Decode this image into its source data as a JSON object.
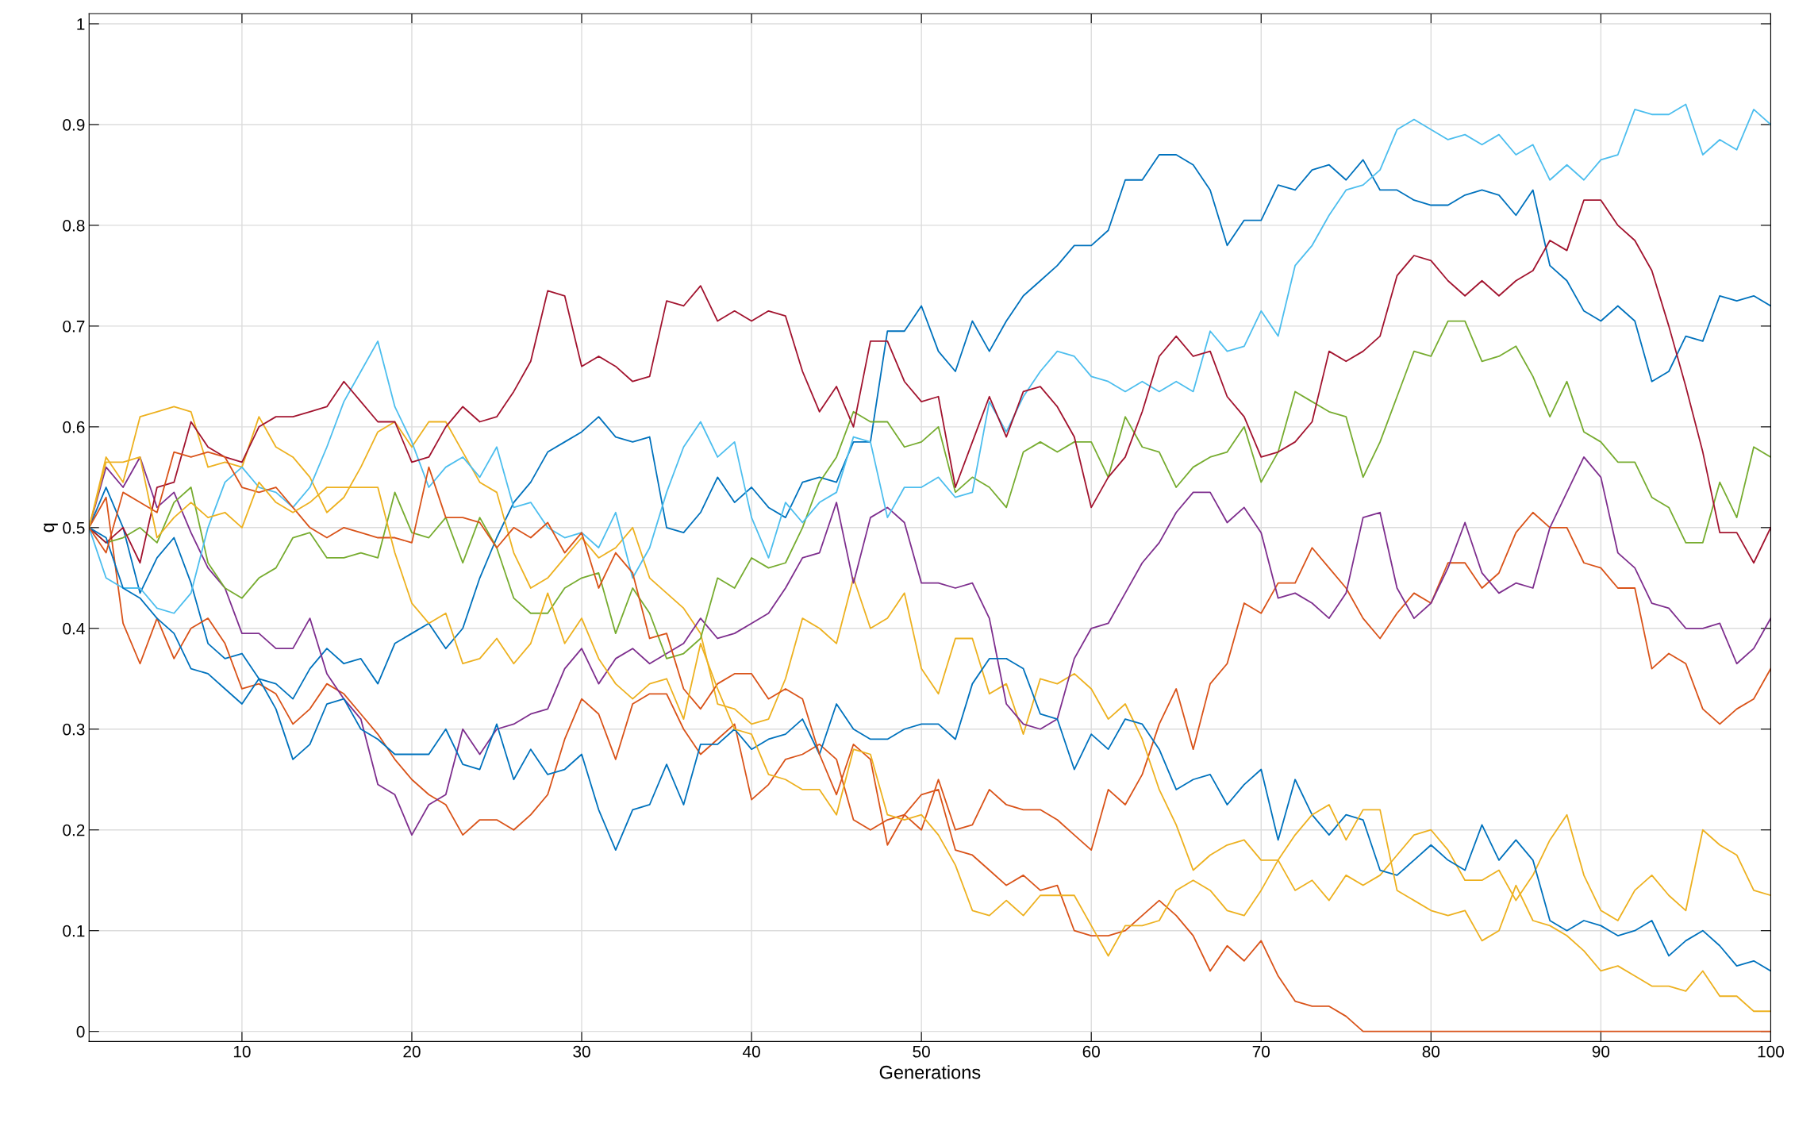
{
  "chart_data": {
    "type": "line",
    "xlabel": "Generations",
    "ylabel": "q",
    "x": [
      1,
      2,
      3,
      4,
      5,
      6,
      7,
      8,
      9,
      10,
      11,
      12,
      13,
      14,
      15,
      16,
      17,
      18,
      19,
      20,
      21,
      22,
      23,
      24,
      25,
      26,
      27,
      28,
      29,
      30,
      31,
      32,
      33,
      34,
      35,
      36,
      37,
      38,
      39,
      40,
      41,
      42,
      43,
      44,
      45,
      46,
      47,
      48,
      49,
      50,
      51,
      52,
      53,
      54,
      55,
      56,
      57,
      58,
      59,
      60,
      61,
      62,
      63,
      64,
      65,
      66,
      67,
      68,
      69,
      70,
      71,
      72,
      73,
      74,
      75,
      76,
      77,
      78,
      79,
      80,
      81,
      82,
      83,
      84,
      85,
      86,
      87,
      88,
      89,
      90,
      91,
      92,
      93,
      94,
      95,
      96,
      97,
      98,
      99,
      100
    ],
    "xlim": [
      1,
      100
    ],
    "xticks": [
      10,
      20,
      30,
      40,
      50,
      60,
      70,
      80,
      90,
      100
    ],
    "ylim": [
      -0.01,
      1.01
    ],
    "yticks": [
      0,
      0.1,
      0.2,
      0.3,
      0.4,
      0.5,
      0.6,
      0.7,
      0.8,
      0.9,
      1
    ],
    "grid": true,
    "marker": "none",
    "line_style": "solid",
    "series": [
      {
        "color": "#0072bd",
        "values": [
          0.5,
          0.54,
          0.5,
          0.435,
          0.47,
          0.49,
          0.445,
          0.385,
          0.37,
          0.375,
          0.35,
          0.345,
          0.33,
          0.36,
          0.38,
          0.365,
          0.37,
          0.345,
          0.385,
          0.395,
          0.405,
          0.38,
          0.4,
          0.45,
          0.49,
          0.525,
          0.545,
          0.575,
          0.585,
          0.595,
          0.61,
          0.59,
          0.585,
          0.59,
          0.5,
          0.495,
          0.515,
          0.55,
          0.525,
          0.54,
          0.52,
          0.51,
          0.545,
          0.55,
          0.545,
          0.585,
          0.585,
          0.695,
          0.695,
          0.72,
          0.675,
          0.655,
          0.705,
          0.675,
          0.705,
          0.73,
          0.745,
          0.76,
          0.78,
          0.78,
          0.795,
          0.845,
          0.845,
          0.87,
          0.87,
          0.86,
          0.835,
          0.78,
          0.805,
          0.805,
          0.84,
          0.835,
          0.855,
          0.86,
          0.845,
          0.865,
          0.835,
          0.835,
          0.825,
          0.82,
          0.82,
          0.83,
          0.835,
          0.83,
          0.81,
          0.835,
          0.76,
          0.745,
          0.715,
          0.705,
          0.72,
          0.705,
          0.645,
          0.655,
          0.69,
          0.685,
          0.73,
          0.725,
          0.73,
          0.72
        ]
      },
      {
        "color": "#d95319",
        "values": [
          0.5,
          0.53,
          0.405,
          0.365,
          0.41,
          0.37,
          0.4,
          0.41,
          0.385,
          0.34,
          0.345,
          0.335,
          0.305,
          0.32,
          0.345,
          0.335,
          0.315,
          0.295,
          0.27,
          0.25,
          0.235,
          0.225,
          0.195,
          0.21,
          0.21,
          0.2,
          0.215,
          0.235,
          0.29,
          0.33,
          0.315,
          0.27,
          0.325,
          0.335,
          0.335,
          0.3,
          0.275,
          0.29,
          0.305,
          0.23,
          0.245,
          0.27,
          0.275,
          0.285,
          0.27,
          0.21,
          0.2,
          0.21,
          0.215,
          0.2,
          0.25,
          0.2,
          0.205,
          0.24,
          0.225,
          0.22,
          0.22,
          0.21,
          0.195,
          0.18,
          0.24,
          0.225,
          0.255,
          0.305,
          0.34,
          0.28,
          0.345,
          0.365,
          0.425,
          0.415,
          0.445,
          0.445,
          0.48,
          0.46,
          0.44,
          0.41,
          0.39,
          0.415,
          0.435,
          0.425,
          0.465,
          0.465,
          0.44,
          0.455,
          0.495,
          0.515,
          0.5,
          0.5,
          0.465,
          0.46,
          0.44,
          0.44,
          0.36,
          0.375,
          0.365,
          0.32,
          0.305,
          0.32,
          0.33,
          0.36
        ]
      },
      {
        "color": "#edb120",
        "values": [
          0.5,
          0.57,
          0.545,
          0.61,
          0.615,
          0.62,
          0.615,
          0.56,
          0.565,
          0.56,
          0.61,
          0.58,
          0.57,
          0.55,
          0.515,
          0.53,
          0.56,
          0.595,
          0.605,
          0.58,
          0.605,
          0.605,
          0.575,
          0.545,
          0.535,
          0.475,
          0.44,
          0.45,
          0.47,
          0.49,
          0.47,
          0.48,
          0.5,
          0.45,
          0.435,
          0.42,
          0.395,
          0.325,
          0.32,
          0.305,
          0.31,
          0.35,
          0.41,
          0.4,
          0.385,
          0.45,
          0.4,
          0.41,
          0.435,
          0.36,
          0.335,
          0.39,
          0.39,
          0.335,
          0.345,
          0.295,
          0.35,
          0.345,
          0.355,
          0.34,
          0.31,
          0.325,
          0.29,
          0.24,
          0.205,
          0.16,
          0.175,
          0.185,
          0.19,
          0.17,
          0.17,
          0.14,
          0.15,
          0.13,
          0.155,
          0.145,
          0.155,
          0.175,
          0.195,
          0.2,
          0.18,
          0.15,
          0.15,
          0.16,
          0.13,
          0.155,
          0.19,
          0.215,
          0.155,
          0.12,
          0.11,
          0.14,
          0.155,
          0.135,
          0.12,
          0.2,
          0.185,
          0.175,
          0.14,
          0.135
        ]
      },
      {
        "color": "#7e2f8e",
        "values": [
          0.5,
          0.56,
          0.54,
          0.57,
          0.52,
          0.535,
          0.495,
          0.46,
          0.44,
          0.395,
          0.395,
          0.38,
          0.38,
          0.41,
          0.355,
          0.33,
          0.31,
          0.245,
          0.235,
          0.195,
          0.225,
          0.235,
          0.3,
          0.275,
          0.3,
          0.305,
          0.315,
          0.32,
          0.36,
          0.38,
          0.345,
          0.37,
          0.38,
          0.365,
          0.375,
          0.385,
          0.41,
          0.39,
          0.395,
          0.405,
          0.415,
          0.44,
          0.47,
          0.475,
          0.525,
          0.445,
          0.51,
          0.52,
          0.505,
          0.445,
          0.445,
          0.44,
          0.445,
          0.41,
          0.325,
          0.305,
          0.3,
          0.31,
          0.37,
          0.4,
          0.405,
          0.435,
          0.465,
          0.485,
          0.515,
          0.535,
          0.535,
          0.505,
          0.52,
          0.495,
          0.43,
          0.435,
          0.425,
          0.41,
          0.435,
          0.51,
          0.515,
          0.44,
          0.41,
          0.425,
          0.46,
          0.505,
          0.455,
          0.435,
          0.445,
          0.44,
          0.5,
          0.535,
          0.57,
          0.55,
          0.475,
          0.46,
          0.425,
          0.42,
          0.4,
          0.4,
          0.405,
          0.365,
          0.38,
          0.41
        ]
      },
      {
        "color": "#77ac30",
        "values": [
          0.5,
          0.485,
          0.49,
          0.5,
          0.485,
          0.525,
          0.54,
          0.465,
          0.44,
          0.43,
          0.45,
          0.46,
          0.49,
          0.495,
          0.47,
          0.47,
          0.475,
          0.47,
          0.535,
          0.495,
          0.49,
          0.51,
          0.465,
          0.51,
          0.48,
          0.43,
          0.415,
          0.415,
          0.44,
          0.45,
          0.455,
          0.395,
          0.44,
          0.415,
          0.37,
          0.375,
          0.39,
          0.45,
          0.44,
          0.47,
          0.46,
          0.465,
          0.5,
          0.545,
          0.57,
          0.615,
          0.605,
          0.605,
          0.58,
          0.585,
          0.6,
          0.535,
          0.55,
          0.54,
          0.52,
          0.575,
          0.585,
          0.575,
          0.585,
          0.585,
          0.55,
          0.61,
          0.58,
          0.575,
          0.54,
          0.56,
          0.57,
          0.575,
          0.6,
          0.545,
          0.575,
          0.635,
          0.625,
          0.615,
          0.61,
          0.55,
          0.585,
          0.63,
          0.675,
          0.67,
          0.705,
          0.705,
          0.665,
          0.67,
          0.68,
          0.65,
          0.61,
          0.645,
          0.595,
          0.585,
          0.565,
          0.565,
          0.53,
          0.52,
          0.485,
          0.485,
          0.545,
          0.51,
          0.58,
          0.57
        ]
      },
      {
        "color": "#4dbeee",
        "values": [
          0.5,
          0.45,
          0.44,
          0.44,
          0.42,
          0.415,
          0.435,
          0.5,
          0.545,
          0.56,
          0.54,
          0.535,
          0.52,
          0.54,
          0.58,
          0.625,
          0.655,
          0.685,
          0.62,
          0.585,
          0.54,
          0.56,
          0.57,
          0.55,
          0.58,
          0.52,
          0.525,
          0.5,
          0.49,
          0.495,
          0.48,
          0.515,
          0.45,
          0.48,
          0.535,
          0.58,
          0.605,
          0.57,
          0.585,
          0.51,
          0.47,
          0.525,
          0.505,
          0.525,
          0.535,
          0.59,
          0.585,
          0.51,
          0.54,
          0.54,
          0.55,
          0.53,
          0.535,
          0.625,
          0.595,
          0.63,
          0.655,
          0.675,
          0.67,
          0.65,
          0.645,
          0.635,
          0.645,
          0.635,
          0.645,
          0.635,
          0.695,
          0.675,
          0.68,
          0.715,
          0.69,
          0.76,
          0.78,
          0.81,
          0.835,
          0.84,
          0.855,
          0.895,
          0.905,
          0.895,
          0.885,
          0.89,
          0.88,
          0.89,
          0.87,
          0.88,
          0.845,
          0.86,
          0.845,
          0.865,
          0.87,
          0.915,
          0.91,
          0.91,
          0.92,
          0.87,
          0.885,
          0.875,
          0.915,
          0.9
        ]
      },
      {
        "color": "#a2142f",
        "values": [
          0.5,
          0.485,
          0.5,
          0.465,
          0.54,
          0.545,
          0.605,
          0.58,
          0.57,
          0.565,
          0.6,
          0.61,
          0.61,
          0.615,
          0.62,
          0.645,
          0.625,
          0.605,
          0.605,
          0.565,
          0.57,
          0.6,
          0.62,
          0.605,
          0.61,
          0.635,
          0.665,
          0.735,
          0.73,
          0.66,
          0.67,
          0.66,
          0.645,
          0.65,
          0.725,
          0.72,
          0.74,
          0.705,
          0.715,
          0.705,
          0.715,
          0.71,
          0.655,
          0.615,
          0.64,
          0.6,
          0.685,
          0.685,
          0.645,
          0.625,
          0.63,
          0.54,
          0.585,
          0.63,
          0.59,
          0.635,
          0.64,
          0.62,
          0.59,
          0.52,
          0.55,
          0.57,
          0.615,
          0.67,
          0.69,
          0.67,
          0.675,
          0.63,
          0.61,
          0.57,
          0.575,
          0.585,
          0.605,
          0.675,
          0.665,
          0.675,
          0.69,
          0.75,
          0.77,
          0.765,
          0.745,
          0.73,
          0.745,
          0.73,
          0.745,
          0.755,
          0.785,
          0.775,
          0.825,
          0.825,
          0.8,
          0.785,
          0.755,
          0.7,
          0.64,
          0.575,
          0.495,
          0.495,
          0.465,
          0.5
        ]
      },
      {
        "color": "#0072bd",
        "values": [
          0.5,
          0.49,
          0.44,
          0.43,
          0.41,
          0.395,
          0.36,
          0.355,
          0.34,
          0.325,
          0.35,
          0.32,
          0.27,
          0.285,
          0.325,
          0.33,
          0.3,
          0.29,
          0.275,
          0.275,
          0.275,
          0.3,
          0.265,
          0.26,
          0.305,
          0.25,
          0.28,
          0.255,
          0.26,
          0.275,
          0.22,
          0.18,
          0.22,
          0.225,
          0.265,
          0.225,
          0.285,
          0.285,
          0.3,
          0.28,
          0.29,
          0.295,
          0.31,
          0.275,
          0.325,
          0.3,
          0.29,
          0.29,
          0.3,
          0.305,
          0.305,
          0.29,
          0.345,
          0.37,
          0.37,
          0.36,
          0.315,
          0.31,
          0.26,
          0.295,
          0.28,
          0.31,
          0.305,
          0.28,
          0.24,
          0.25,
          0.255,
          0.225,
          0.245,
          0.26,
          0.19,
          0.25,
          0.215,
          0.195,
          0.215,
          0.21,
          0.16,
          0.155,
          0.17,
          0.185,
          0.17,
          0.16,
          0.205,
          0.17,
          0.19,
          0.17,
          0.11,
          0.1,
          0.11,
          0.105,
          0.095,
          0.1,
          0.11,
          0.075,
          0.09,
          0.1,
          0.085,
          0.065,
          0.07,
          0.06
        ]
      },
      {
        "color": "#d95319",
        "values": [
          0.5,
          0.475,
          0.535,
          0.525,
          0.515,
          0.575,
          0.57,
          0.575,
          0.57,
          0.54,
          0.535,
          0.54,
          0.52,
          0.5,
          0.49,
          0.5,
          0.495,
          0.49,
          0.49,
          0.485,
          0.56,
          0.51,
          0.51,
          0.505,
          0.48,
          0.5,
          0.49,
          0.505,
          0.475,
          0.495,
          0.44,
          0.475,
          0.455,
          0.39,
          0.395,
          0.34,
          0.32,
          0.345,
          0.355,
          0.355,
          0.33,
          0.34,
          0.33,
          0.275,
          0.235,
          0.285,
          0.27,
          0.185,
          0.215,
          0.235,
          0.24,
          0.18,
          0.175,
          0.16,
          0.145,
          0.155,
          0.14,
          0.145,
          0.1,
          0.095,
          0.095,
          0.1,
          0.115,
          0.13,
          0.115,
          0.095,
          0.06,
          0.085,
          0.07,
          0.09,
          0.055,
          0.03,
          0.025,
          0.025,
          0.015,
          0,
          0,
          0,
          0,
          0,
          0,
          0,
          0,
          0,
          0,
          0,
          0,
          0,
          0,
          0,
          0,
          0,
          0,
          0,
          0,
          0,
          0,
          0,
          0,
          0
        ]
      },
      {
        "color": "#edb120",
        "values": [
          0.5,
          0.565,
          0.565,
          0.57,
          0.49,
          0.51,
          0.525,
          0.51,
          0.515,
          0.5,
          0.545,
          0.525,
          0.515,
          0.525,
          0.54,
          0.54,
          0.54,
          0.54,
          0.475,
          0.425,
          0.405,
          0.415,
          0.365,
          0.37,
          0.39,
          0.365,
          0.385,
          0.435,
          0.385,
          0.41,
          0.37,
          0.345,
          0.33,
          0.345,
          0.35,
          0.31,
          0.385,
          0.34,
          0.3,
          0.295,
          0.255,
          0.25,
          0.24,
          0.24,
          0.215,
          0.28,
          0.275,
          0.215,
          0.21,
          0.215,
          0.195,
          0.165,
          0.12,
          0.115,
          0.13,
          0.115,
          0.135,
          0.135,
          0.135,
          0.105,
          0.075,
          0.105,
          0.105,
          0.11,
          0.14,
          0.15,
          0.14,
          0.12,
          0.115,
          0.14,
          0.17,
          0.195,
          0.215,
          0.225,
          0.19,
          0.22,
          0.22,
          0.14,
          0.13,
          0.12,
          0.115,
          0.12,
          0.09,
          0.1,
          0.145,
          0.11,
          0.105,
          0.095,
          0.08,
          0.06,
          0.065,
          0.055,
          0.045,
          0.045,
          0.04,
          0.06,
          0.035,
          0.035,
          0.02,
          0.02
        ]
      }
    ]
  }
}
